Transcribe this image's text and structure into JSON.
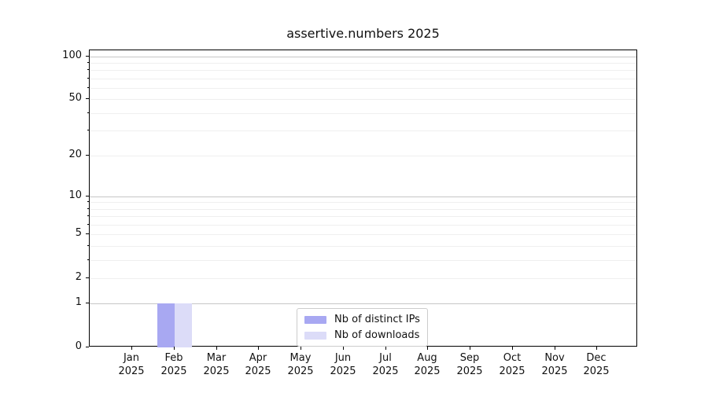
{
  "figure": {
    "title": "assertive.numbers 2025"
  },
  "colors": {
    "distinct_ips": "#a8a8f2",
    "downloads": "#dcdcf8",
    "grid_major": "#c6c6c6",
    "grid_minor": "#efefef",
    "axis": "#000000",
    "text": "#111111",
    "legend_border": "#cccccc",
    "background": "#ffffff"
  },
  "chart_data": {
    "type": "bar",
    "title": "assertive.numbers 2025",
    "categories": [
      "Jan 2025",
      "Feb 2025",
      "Mar 2025",
      "Apr 2025",
      "May 2025",
      "Jun 2025",
      "Jul 2025",
      "Aug 2025",
      "Sep 2025",
      "Oct 2025",
      "Nov 2025",
      "Dec 2025"
    ],
    "series": [
      {
        "name": "Nb of distinct IPs",
        "color": "#a8a8f2",
        "values": [
          0,
          1,
          0,
          0,
          0,
          0,
          0,
          0,
          0,
          0,
          0,
          0
        ]
      },
      {
        "name": "Nb of downloads",
        "color": "#dcdcf8",
        "values": [
          0,
          1,
          0,
          0,
          0,
          0,
          0,
          0,
          0,
          0,
          0,
          0
        ]
      }
    ],
    "xlabel": "",
    "ylabel": "",
    "yscale": "log1p",
    "ylim": [
      0,
      110
    ],
    "yticks": [
      0,
      1,
      2,
      5,
      10,
      20,
      50,
      100
    ],
    "grid": "horizontal, major decades darker + faint minor integer lines",
    "legend_position": "lower-center-inside"
  }
}
